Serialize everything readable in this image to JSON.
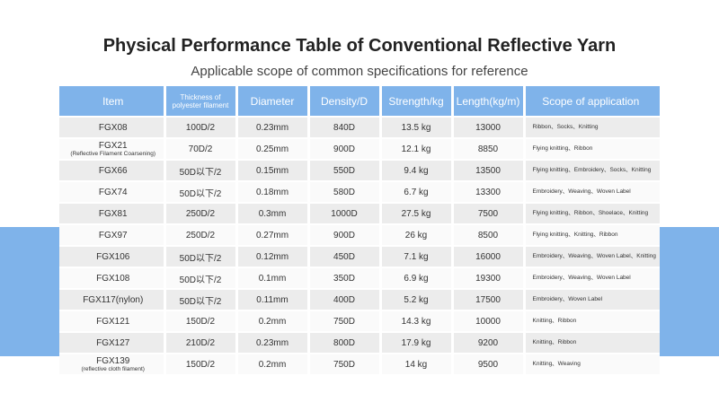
{
  "title": "Physical Performance Table of Conventional Reflective Yarn",
  "subtitle": "Applicable scope of common specifications for reference",
  "headers": {
    "item": "Item",
    "thickness": "Thickness of polyester filament",
    "diameter": "Diameter",
    "density": "Density/D",
    "strength": "Strength/kg",
    "length": "Length(kg/m)",
    "scope": "Scope of application"
  },
  "rows": [
    {
      "item": "FGX08",
      "note": "",
      "thickness": "100D/2",
      "diameter": "0.23mm",
      "density": "840D",
      "strength": "13.5 kg",
      "length": "13000",
      "scope": "Ribbon、Socks、Knitting"
    },
    {
      "item": "FGX21",
      "note": "(Reflective Filament Coarsening)",
      "thickness": "70D/2",
      "diameter": "0.25mm",
      "density": "900D",
      "strength": "12.1 kg",
      "length": "8850",
      "scope": "Flying knitting、Ribbon"
    },
    {
      "item": "FGX66",
      "note": "",
      "thickness": "50D以下/2",
      "diameter": "0.15mm",
      "density": "550D",
      "strength": "9.4 kg",
      "length": "13500",
      "scope": "Flying knitting、Embroidery、Socks、Knitting"
    },
    {
      "item": "FGX74",
      "note": "",
      "thickness": "50D以下/2",
      "diameter": "0.18mm",
      "density": "580D",
      "strength": "6.7 kg",
      "length": "13300",
      "scope": "Embroidery、Weaving、Woven Label"
    },
    {
      "item": "FGX81",
      "note": "",
      "thickness": "250D/2",
      "diameter": "0.3mm",
      "density": "1000D",
      "strength": "27.5 kg",
      "length": "7500",
      "scope": "Flying knitting、Ribbon、Shoelace、Knitting"
    },
    {
      "item": "FGX97",
      "note": "",
      "thickness": "250D/2",
      "diameter": "0.27mm",
      "density": "900D",
      "strength": "26 kg",
      "length": "8500",
      "scope": "Flying knitting、Knitting、Ribbon"
    },
    {
      "item": "FGX106",
      "note": "",
      "thickness": "50D以下/2",
      "diameter": "0.12mm",
      "density": "450D",
      "strength": "7.1 kg",
      "length": "16000",
      "scope": "Embroidery、Weaving、Woven Label、Knitting"
    },
    {
      "item": "FGX108",
      "note": "",
      "thickness": "50D以下/2",
      "diameter": "0.1mm",
      "density": "350D",
      "strength": "6.9 kg",
      "length": "19300",
      "scope": "Embroidery、Weaving、Woven Label"
    },
    {
      "item": "FGX117(nylon)",
      "note": "",
      "thickness": "50D以下/2",
      "diameter": "0.11mm",
      "density": "400D",
      "strength": "5.2 kg",
      "length": "17500",
      "scope": "Embroidery、Woven Label"
    },
    {
      "item": "FGX121",
      "note": "",
      "thickness": "150D/2",
      "diameter": "0.2mm",
      "density": "750D",
      "strength": "14.3 kg",
      "length": "10000",
      "scope": "Knitting、Ribbon"
    },
    {
      "item": "FGX127",
      "note": "",
      "thickness": "210D/2",
      "diameter": "0.23mm",
      "density": "800D",
      "strength": "17.9 kg",
      "length": "9200",
      "scope": "Knitting、Ribbon"
    },
    {
      "item": "FGX139",
      "note": "(reflective cloth filament)",
      "thickness": "150D/2",
      "diameter": "0.2mm",
      "density": "750D",
      "strength": "14 kg",
      "length": "9500",
      "scope": "Knitting、Weaving"
    }
  ]
}
